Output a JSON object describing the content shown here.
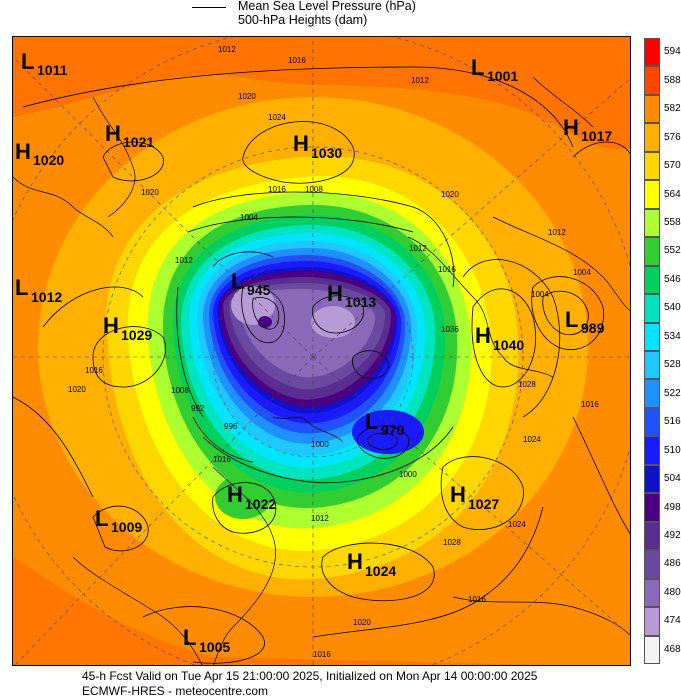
{
  "legend": {
    "line_label": "Mean Sea Level Pressure (hPa)",
    "fill_label": "500-hPa Heights (dam)"
  },
  "colorbar": [
    {
      "value": "594",
      "color": "#ff0000"
    },
    {
      "value": "588",
      "color": "#ff4500"
    },
    {
      "value": "582",
      "color": "#ff8c00"
    },
    {
      "value": "576",
      "color": "#ffb000"
    },
    {
      "value": "570",
      "color": "#ffd700"
    },
    {
      "value": "564",
      "color": "#ffff00"
    },
    {
      "value": "558",
      "color": "#adff2f"
    },
    {
      "value": "552",
      "color": "#32cd32"
    },
    {
      "value": "546",
      "color": "#00d060"
    },
    {
      "value": "540",
      "color": "#00e5c0"
    },
    {
      "value": "534",
      "color": "#00e5ff"
    },
    {
      "value": "528",
      "color": "#1ec8ff"
    },
    {
      "value": "522",
      "color": "#1e90ff"
    },
    {
      "value": "516",
      "color": "#2050ff"
    },
    {
      "value": "510",
      "color": "#1a1aff"
    },
    {
      "value": "504",
      "color": "#1010c8"
    },
    {
      "value": "498",
      "color": "#4b0082"
    },
    {
      "value": "492",
      "color": "#5a2d91"
    },
    {
      "value": "486",
      "color": "#6a4aa0"
    },
    {
      "value": "480",
      "color": "#8a6ab8"
    },
    {
      "value": "474",
      "color": "#b79bd6"
    },
    {
      "value": "468",
      "color": "#f4f4f4"
    }
  ],
  "pressure_centers": [
    {
      "type": "L",
      "value": "1011"
    },
    {
      "type": "L",
      "value": "1001"
    },
    {
      "type": "H",
      "value": "1021"
    },
    {
      "type": "H",
      "value": "1030"
    },
    {
      "type": "H",
      "value": "1017"
    },
    {
      "type": "H",
      "value": "1020"
    },
    {
      "type": "L",
      "value": "1012"
    },
    {
      "type": "L",
      "value": "945"
    },
    {
      "type": "H",
      "value": "1013"
    },
    {
      "type": "H",
      "value": "1029"
    },
    {
      "type": "H",
      "value": "1040"
    },
    {
      "type": "L",
      "value": "989"
    },
    {
      "type": "L",
      "value": "970"
    },
    {
      "type": "H",
      "value": "1022"
    },
    {
      "type": "H",
      "value": "1027"
    },
    {
      "type": "L",
      "value": "1009"
    },
    {
      "type": "H",
      "value": "1024"
    },
    {
      "type": "L",
      "value": "1005"
    }
  ],
  "isobar_labels": [
    "1012",
    "1016",
    "1020",
    "1024",
    "1004",
    "1008",
    "996",
    "992",
    "1000",
    "1028",
    "1036"
  ],
  "footer": {
    "line1": "45-h Fcst Valid on Tue Apr 15 21:00:00 2025, Initialized on Mon Apr 14 00:00:00 2025",
    "line2": "ECMWF-HRES  - meteocentre.com"
  }
}
